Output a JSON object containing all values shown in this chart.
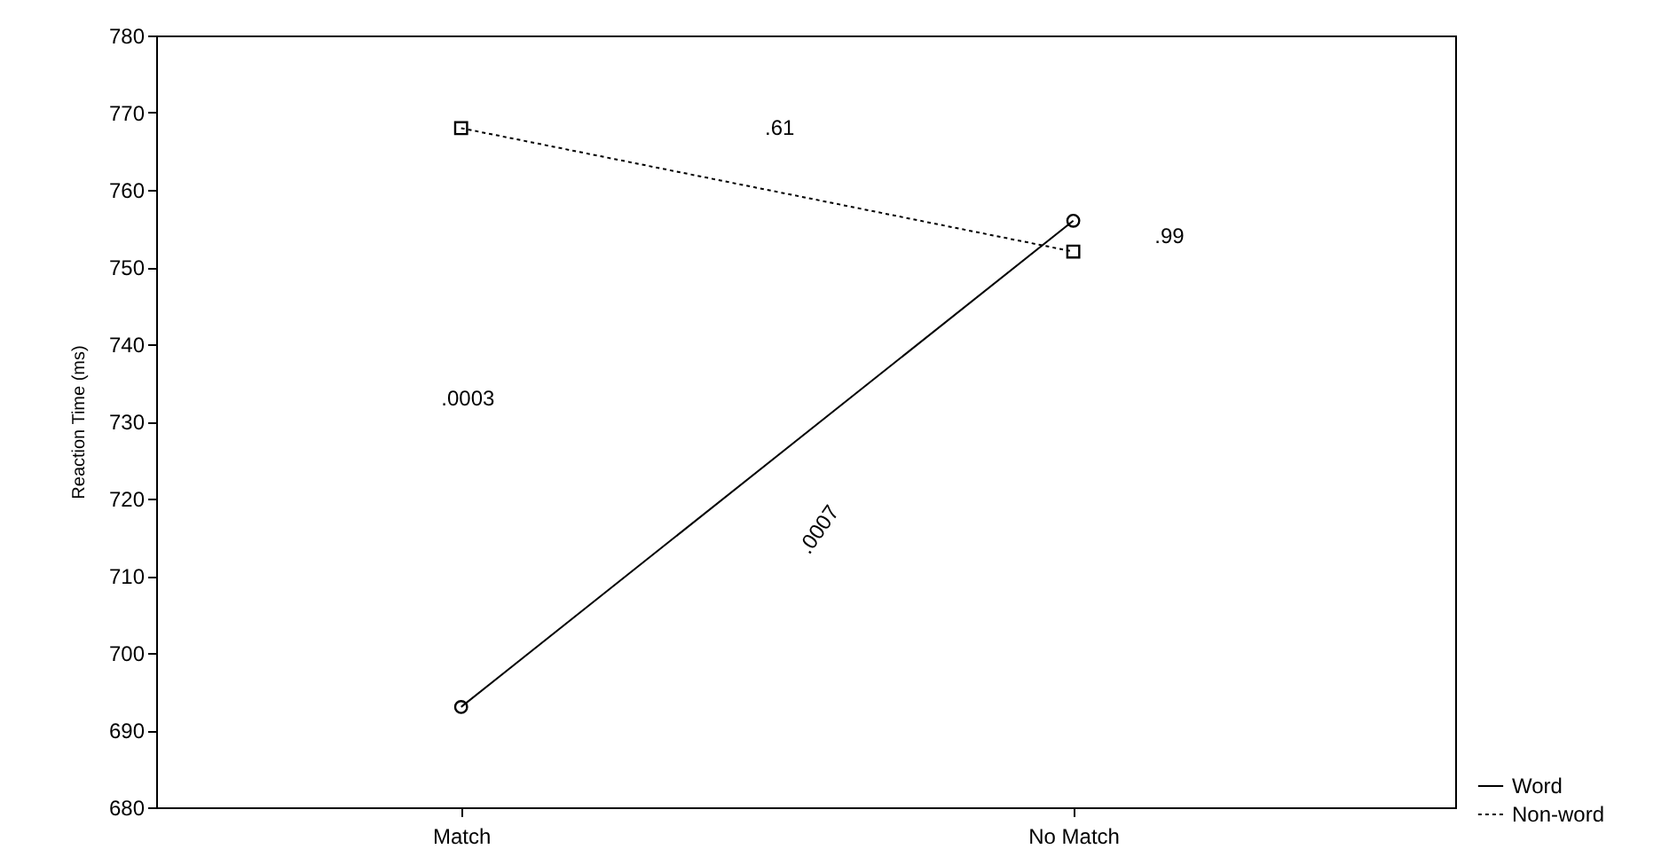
{
  "chart_data": {
    "type": "line",
    "ylabel": "Reaction Time (ms)",
    "categories": [
      "Match",
      "No Match"
    ],
    "series": [
      {
        "name": "Word",
        "color": "#000000",
        "values": [
          693,
          756
        ],
        "marker": "circle",
        "line_style": "solid"
      },
      {
        "name": "Non-word",
        "color": "#000000",
        "values": [
          768,
          752
        ],
        "marker": "square",
        "line_style": "dotted"
      }
    ],
    "ylim": [
      680,
      780
    ],
    "yticks": [
      680,
      690,
      700,
      710,
      720,
      730,
      740,
      750,
      760,
      770,
      780
    ],
    "grid": false,
    "legend": "bottom right",
    "annotations": [
      ".61",
      ".99",
      ".0003",
      ".0007"
    ]
  }
}
